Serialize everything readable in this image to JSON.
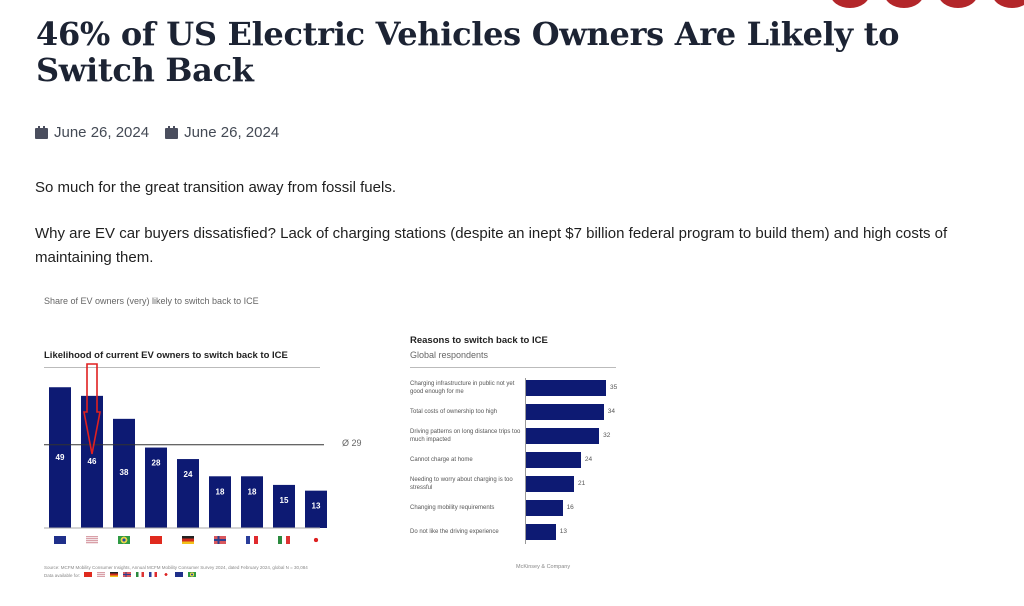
{
  "article": {
    "title": "46% of US Electric Vehicles Owners Are Likely to Switch Back",
    "meta": [
      {
        "icon": "calendar-icon",
        "text": "June 26, 2024"
      },
      {
        "icon": "calendar-icon",
        "text": "June 26, 2024"
      }
    ],
    "paragraphs": [
      "So much for the great transition away from fossil fuels.",
      "Why are EV car buyers dissatisfied? Lack of charging stations (despite an inept $7 billion federal program to build them) and high costs of maintaining them."
    ]
  },
  "figure": {
    "subtitle": "Share of EV owners (very) likely to switch back to ICE",
    "source_line": "Source: MCFM Mobility Consumer Insights, Annual MCFM Mobility Consumer Survey 2024, dated February 2024, global N = 30,084",
    "data_available_label": "Data available for:",
    "credit": "McKinsey & Company",
    "bar_color": "#0d1a73",
    "highlight_color": "#e02020"
  },
  "chart_data": [
    {
      "type": "bar",
      "title": "Likelihood of current EV owners to switch back to ICE",
      "categories": [
        "Australia",
        "United States",
        "Brazil",
        "China",
        "Germany",
        "Norway",
        "France",
        "Italy",
        "Japan"
      ],
      "values": [
        49,
        46,
        38,
        28,
        24,
        18,
        18,
        15,
        13
      ],
      "average_label": "Ø 29",
      "average": 29,
      "highlighted_category": "United States",
      "ylim": [
        0,
        55
      ],
      "xlabel": "",
      "ylabel": "",
      "grid": false
    },
    {
      "type": "bar",
      "orientation": "horizontal",
      "title": "Reasons to switch back to ICE",
      "subtitle": "Global respondents",
      "categories": [
        "Charging infrastructure in public not yet good enough for me",
        "Total costs of ownership too high",
        "Driving patterns on long distance trips too much impacted",
        "Cannot charge at home",
        "Needing to worry about charging is too stressful",
        "Changing mobility requirements",
        "Do not like the driving experience"
      ],
      "values": [
        35,
        34,
        32,
        24,
        21,
        16,
        13
      ],
      "xlim": [
        0,
        40
      ]
    }
  ]
}
